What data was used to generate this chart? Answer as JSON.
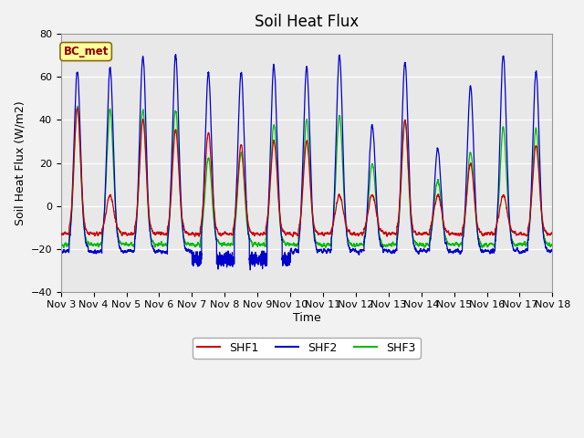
{
  "title": "Soil Heat Flux",
  "xlabel": "Time",
  "ylabel": "Soil Heat Flux (W/m2)",
  "ylim": [
    -40,
    80
  ],
  "xlim": [
    0,
    15
  ],
  "annotation": "BC_met",
  "legend_labels": [
    "SHF1",
    "SHF2",
    "SHF3"
  ],
  "line_colors": [
    "#cc0000",
    "#0000cc",
    "#00bb00"
  ],
  "xtick_labels": [
    "Nov 3",
    "Nov 4",
    "Nov 5",
    "Nov 6",
    "Nov 7",
    "Nov 8",
    "Nov 9",
    "Nov 10",
    "Nov 11",
    "Nov 12",
    "Nov 13",
    "Nov 14",
    "Nov 15",
    "Nov 16",
    "Nov 17",
    "Nov 18"
  ],
  "ytick_values": [
    -40,
    -20,
    0,
    20,
    40,
    60,
    80
  ],
  "plot_bg_color": "#e8e8e8",
  "fig_bg_color": "#f2f2f2",
  "title_fontsize": 12,
  "axis_label_fontsize": 9,
  "tick_fontsize": 8,
  "peaks_shf1": [
    46,
    5,
    40,
    35,
    34,
    28,
    30,
    30,
    5,
    5,
    40,
    5,
    20,
    5,
    28
  ],
  "peaks_shf2": [
    63,
    65,
    70,
    70,
    62,
    62,
    65,
    65,
    70,
    37,
    67,
    27,
    56,
    70,
    63
  ],
  "peaks_shf3": [
    45,
    45,
    45,
    45,
    22,
    25,
    38,
    40,
    42,
    20,
    40,
    12,
    25,
    36,
    36
  ],
  "night_shf1": -13,
  "night_shf2": -21,
  "night_shf3": -18,
  "linewidth": 0.9
}
